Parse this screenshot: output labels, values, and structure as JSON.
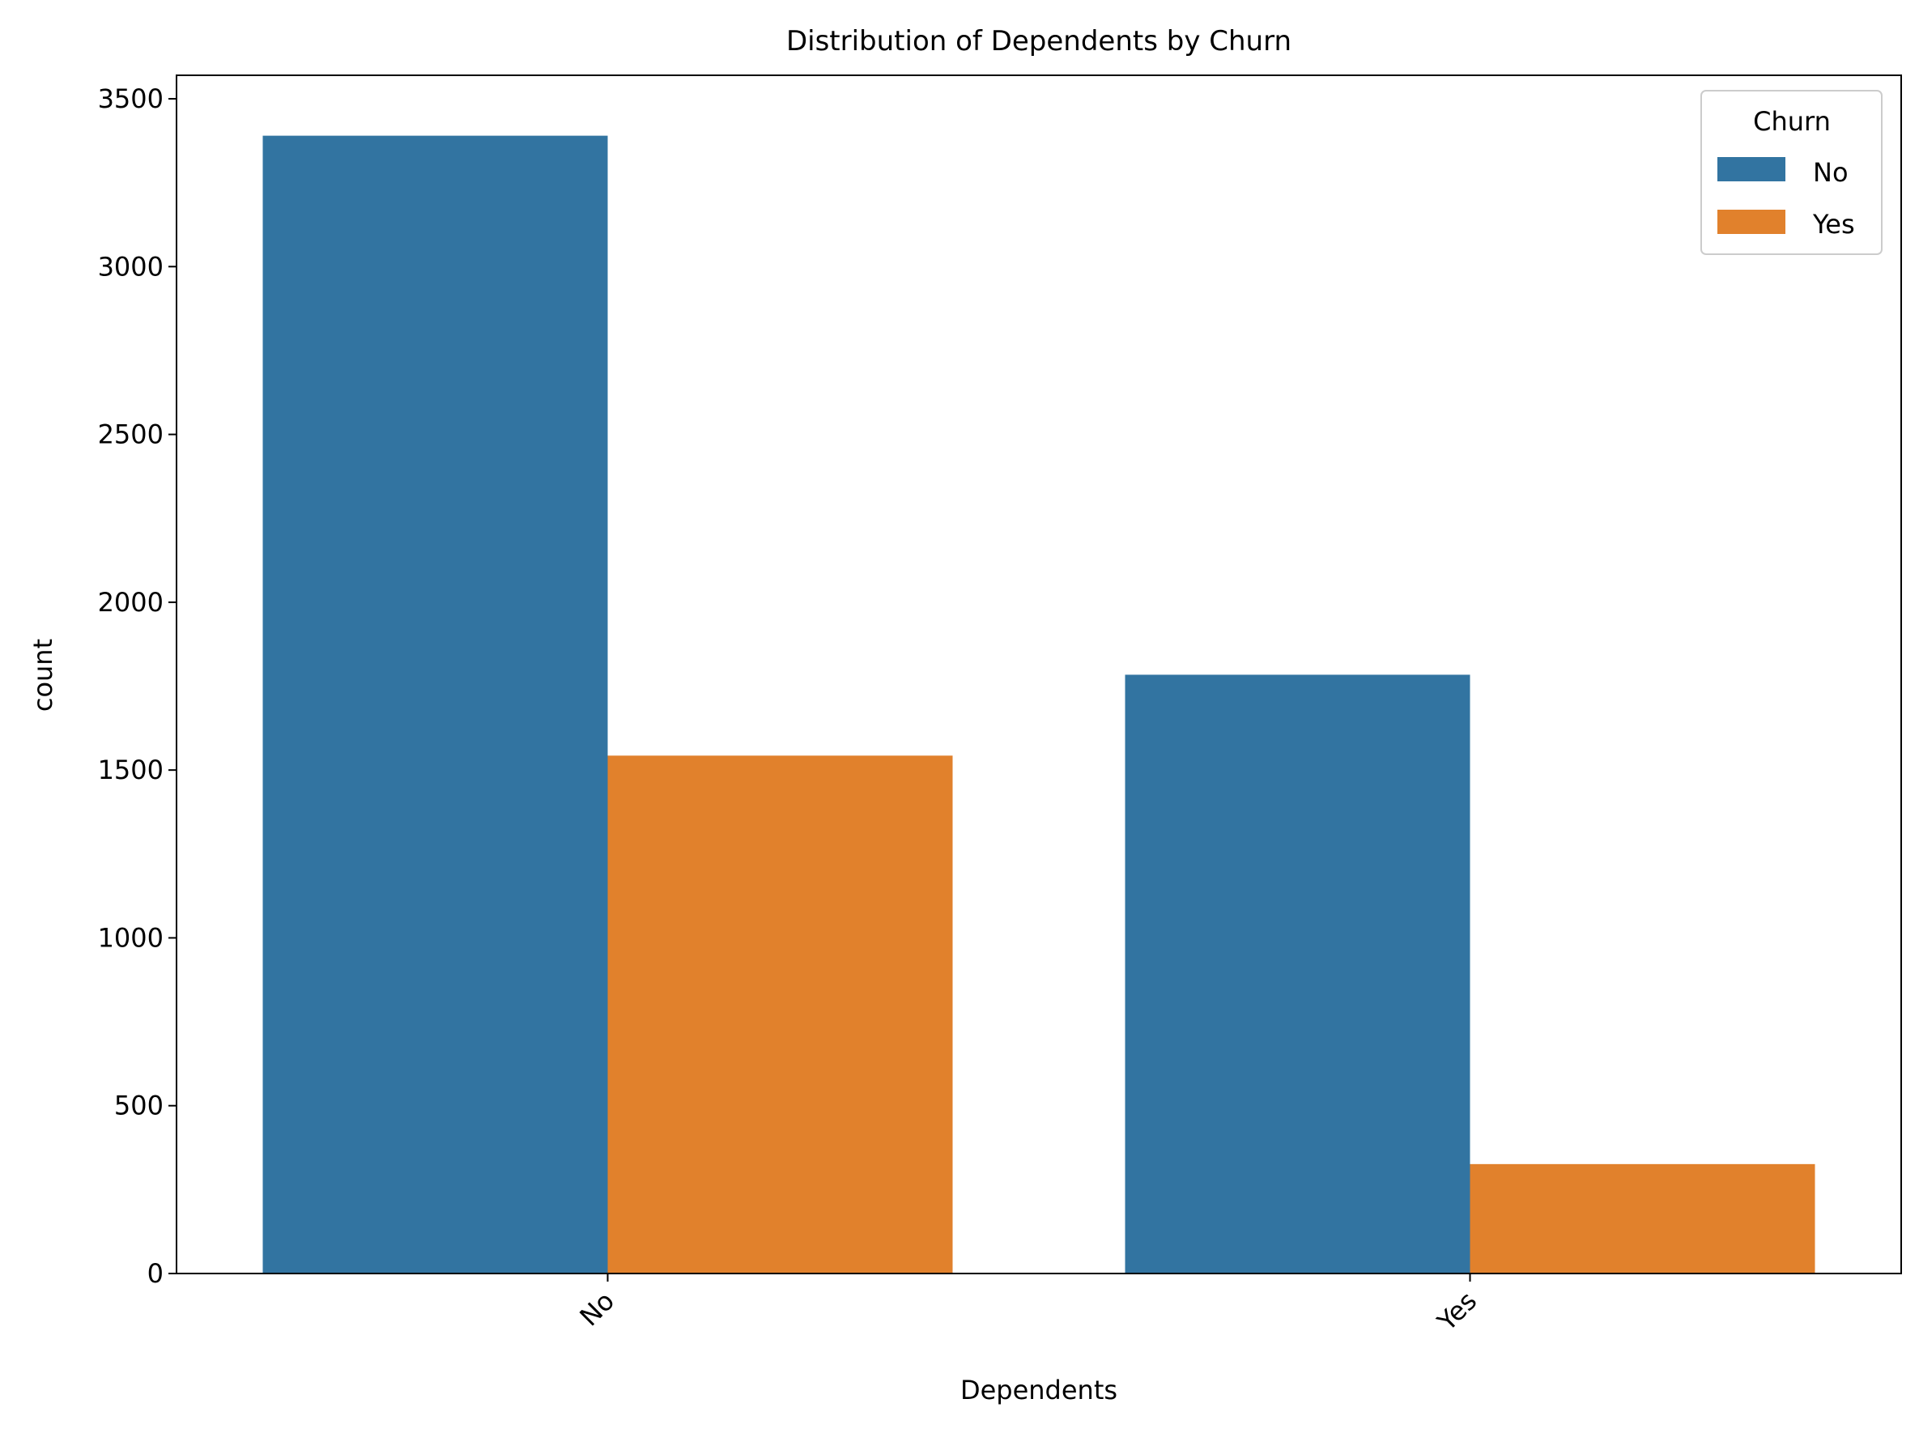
{
  "chart_data": {
    "type": "bar",
    "title": "Distribution of Dependents by Churn",
    "xlabel": "Dependents",
    "ylabel": "count",
    "categories": [
      "No",
      "Yes"
    ],
    "series": [
      {
        "name": "No",
        "values": [
          3390,
          1784
        ],
        "color": "#3274a1"
      },
      {
        "name": "Yes",
        "values": [
          1543,
          326
        ],
        "color": "#e1812c"
      }
    ],
    "ylim": [
      0,
      3570
    ],
    "yticks": [
      0,
      500,
      1000,
      1500,
      2000,
      2500,
      3000,
      3500
    ],
    "ytick_labels": [
      "0",
      "500",
      "1000",
      "1500",
      "2000",
      "2500",
      "3000",
      "3500"
    ],
    "xtick_rotation_deg": 45,
    "grid": false,
    "legend": {
      "title": "Churn",
      "placement": "top-right",
      "entries": [
        "No",
        "Yes"
      ]
    }
  }
}
